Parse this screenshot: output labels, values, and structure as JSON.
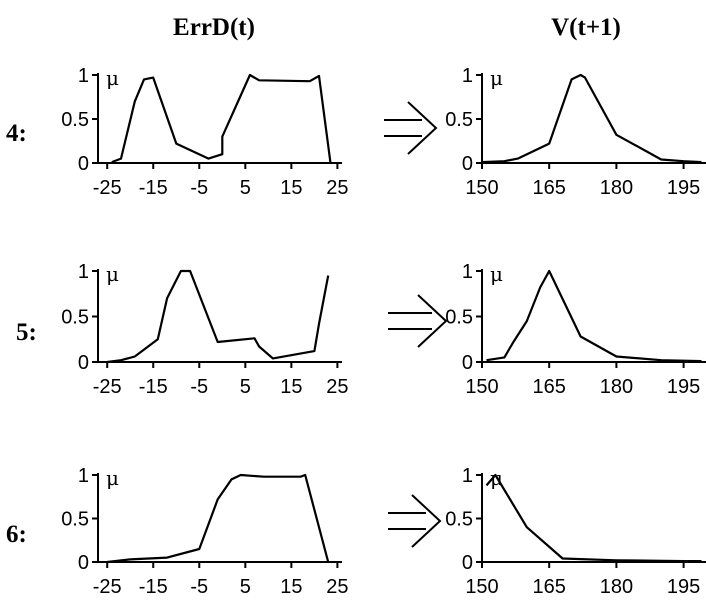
{
  "headers": {
    "left": "ErrD(t)",
    "right": "V(t+1)"
  },
  "mu_symbol": "μ",
  "chart_data": [
    {
      "row_label": "4:",
      "left": {
        "type": "line",
        "xlim": [
          -27,
          26
        ],
        "ylim": [
          0,
          1
        ],
        "xticks": [
          "-25",
          "-15",
          "-5",
          "5",
          "15",
          "25"
        ],
        "xtick_values": [
          -25,
          -15,
          -5,
          5,
          15,
          25
        ],
        "yticks": [
          "0",
          "0.5",
          "1"
        ],
        "ytick_values": [
          0,
          0.5,
          1
        ],
        "x": [
          -24,
          -22,
          -19,
          -17,
          -15,
          -10,
          -3,
          0,
          0,
          6,
          8,
          19,
          21,
          23.5
        ],
        "y": [
          0.01,
          0.05,
          0.7,
          0.95,
          0.97,
          0.22,
          0.05,
          0.1,
          0.3,
          1.0,
          0.94,
          0.93,
          0.99,
          0.0
        ]
      },
      "right": {
        "type": "line",
        "xlim": [
          150,
          200
        ],
        "ylim": [
          0,
          1
        ],
        "xticks": [
          "150",
          "165",
          "180",
          "195"
        ],
        "xtick_values": [
          150,
          165,
          180,
          195
        ],
        "yticks": [
          "0",
          "0.5",
          "1"
        ],
        "ytick_values": [
          0,
          0.5,
          1
        ],
        "x": [
          150,
          155,
          158,
          165,
          170,
          172,
          173,
          180,
          190,
          195,
          199
        ],
        "y": [
          0.01,
          0.02,
          0.05,
          0.22,
          0.95,
          1.0,
          0.97,
          0.32,
          0.04,
          0.02,
          0.01
        ]
      }
    },
    {
      "row_label": "5:",
      "left": {
        "type": "line",
        "xlim": [
          -27,
          26
        ],
        "ylim": [
          0,
          1
        ],
        "xticks": [
          "-25",
          "-15",
          "-5",
          "5",
          "15",
          "25"
        ],
        "xtick_values": [
          -25,
          -15,
          -5,
          5,
          15,
          25
        ],
        "yticks": [
          "0",
          "0.5",
          "1"
        ],
        "ytick_values": [
          0,
          0.5,
          1
        ],
        "x": [
          -25,
          -22,
          -19,
          -14,
          -12,
          -9,
          -7,
          -1,
          7,
          8,
          11,
          20,
          21,
          23
        ],
        "y": [
          0.0,
          0.02,
          0.06,
          0.25,
          0.7,
          1.0,
          1.0,
          0.22,
          0.26,
          0.17,
          0.04,
          0.12,
          0.42,
          0.95
        ]
      },
      "right": {
        "type": "line",
        "xlim": [
          150,
          200
        ],
        "ylim": [
          0,
          1
        ],
        "xticks": [
          "150",
          "165",
          "180",
          "195"
        ],
        "xtick_values": [
          150,
          165,
          180,
          195
        ],
        "yticks": [
          "0",
          "0.5",
          "1"
        ],
        "ytick_values": [
          0,
          0.5,
          1
        ],
        "x": [
          151,
          155,
          157,
          160,
          163,
          165,
          172,
          180,
          190,
          199
        ],
        "y": [
          0.02,
          0.05,
          0.22,
          0.45,
          0.82,
          1.0,
          0.28,
          0.06,
          0.02,
          0.01
        ]
      }
    },
    {
      "row_label": "6:",
      "left": {
        "type": "line",
        "xlim": [
          -27,
          26
        ],
        "ylim": [
          0,
          1
        ],
        "xticks": [
          "-25",
          "-15",
          "-5",
          "5",
          "15",
          "25"
        ],
        "xtick_values": [
          -25,
          -15,
          -5,
          5,
          15,
          25
        ],
        "yticks": [
          "0",
          "0.5",
          "1"
        ],
        "ytick_values": [
          0,
          0.5,
          1
        ],
        "x": [
          -25,
          -20,
          -12,
          -5,
          -1,
          2,
          4,
          9,
          17,
          18,
          23
        ],
        "y": [
          0.0,
          0.03,
          0.05,
          0.15,
          0.72,
          0.95,
          1.0,
          0.98,
          0.98,
          1.0,
          0.0
        ]
      },
      "right": {
        "type": "line",
        "xlim": [
          150,
          200
        ],
        "ylim": [
          0,
          1
        ],
        "xticks": [
          "150",
          "165",
          "180",
          "195"
        ],
        "xtick_values": [
          150,
          165,
          180,
          195
        ],
        "yticks": [
          "0",
          "0.5",
          "1"
        ],
        "ytick_values": [
          0,
          0.5,
          1
        ],
        "x": [
          151,
          153,
          160,
          168,
          180,
          195,
          199
        ],
        "y": [
          0.88,
          1.0,
          0.4,
          0.04,
          0.02,
          0.01,
          0.01
        ]
      }
    }
  ]
}
